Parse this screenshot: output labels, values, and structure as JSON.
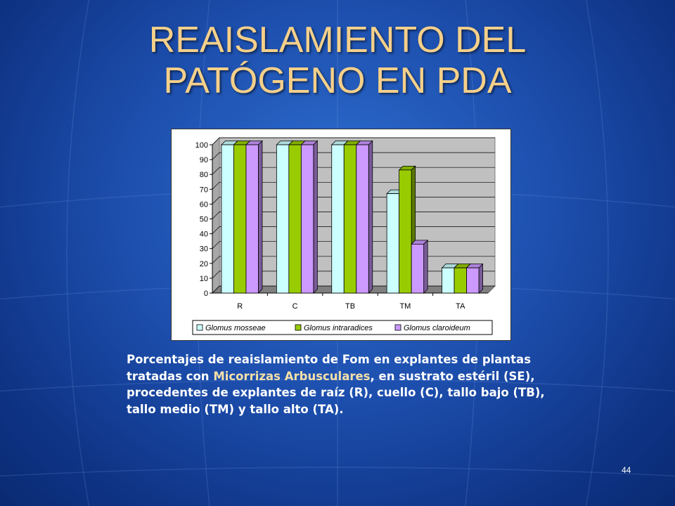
{
  "slide": {
    "title_line1": "REAISLAMIENTO DEL",
    "title_line2": "PATÓGENO EN PDA",
    "caption_part1": "Porcentajes de reaislamiento de Fom en explantes  de plantas tratadas con ",
    "caption_highlight": "Micorrizas Arbusculares",
    "caption_part2": ", en sustrato estéril (SE), procedentes de explantes de raíz (R), cuello (C), tallo bajo (TB), tallo medio (TM) y tallo alto (TA).",
    "page_number": "44",
    "colors": {
      "title": "#f5d08a",
      "caption_highlight": "#f5e0a8",
      "background": "#1d4fae"
    }
  },
  "chart_data": {
    "type": "bar",
    "style": "3d-clustered",
    "categories": [
      "R",
      "C",
      "TB",
      "TM",
      "TA"
    ],
    "series": [
      {
        "name": "Glomus mosseae",
        "values": [
          100,
          100,
          100,
          67,
          17
        ],
        "color": "#ccffff"
      },
      {
        "name": "Glomus intraradices",
        "values": [
          100,
          100,
          100,
          83,
          17
        ],
        "color": "#99cc00"
      },
      {
        "name": "Glomus claroideum",
        "values": [
          100,
          100,
          100,
          33,
          17
        ],
        "color": "#cc99ff"
      }
    ],
    "yticks": [
      0,
      10,
      20,
      30,
      40,
      50,
      60,
      70,
      80,
      90,
      100
    ],
    "ylim": [
      0,
      100
    ],
    "grid": true,
    "legend_position": "bottom",
    "plot_background": "#c0c0c0",
    "title": "",
    "xlabel": "",
    "ylabel": ""
  }
}
